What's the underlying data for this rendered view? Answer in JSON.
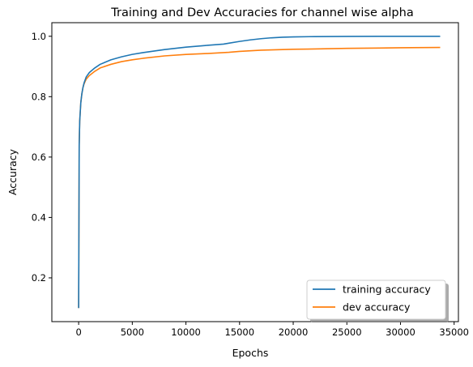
{
  "chart_data": {
    "type": "line",
    "title": "Training and Dev Accuracies for channel wise alpha",
    "xlabel": "Epochs",
    "ylabel": "Accuracy",
    "xlim": [
      -2500,
      35400
    ],
    "ylim": [
      0.055,
      1.045
    ],
    "xticks": [
      0,
      5000,
      10000,
      15000,
      20000,
      25000,
      30000,
      35000
    ],
    "yticks": [
      0.2,
      0.4,
      0.6,
      0.8,
      1.0
    ],
    "ytick_labels": [
      "0.2",
      "0.4",
      "0.6",
      "0.8",
      "1.0"
    ],
    "grid": false,
    "legend_position": "lower-right",
    "series": [
      {
        "name": "training accuracy",
        "color": "#1f77b4",
        "x": [
          0,
          50,
          100,
          200,
          300,
          400,
          500,
          700,
          1000,
          1500,
          2000,
          3000,
          4000,
          5000,
          6000,
          8000,
          10000,
          12000,
          13500,
          14000,
          15000,
          16000,
          17000,
          18000,
          19000,
          20000,
          22000,
          25000,
          28000,
          30000,
          33700
        ],
        "y": [
          0.1,
          0.64,
          0.72,
          0.78,
          0.81,
          0.83,
          0.845,
          0.865,
          0.88,
          0.895,
          0.907,
          0.922,
          0.932,
          0.94,
          0.946,
          0.956,
          0.964,
          0.97,
          0.974,
          0.977,
          0.983,
          0.988,
          0.992,
          0.995,
          0.997,
          0.998,
          0.999,
          0.9995,
          1.0,
          1.0,
          1.0
        ]
      },
      {
        "name": "dev accuracy",
        "color": "#ff7f0e",
        "x": [
          0,
          50,
          100,
          200,
          300,
          400,
          500,
          700,
          1000,
          1500,
          2000,
          3000,
          4000,
          5000,
          6000,
          8000,
          10000,
          12000,
          13500,
          14000,
          15000,
          16000,
          17000,
          18000,
          20000,
          22000,
          25000,
          28000,
          30000,
          33700
        ],
        "y": [
          0.1,
          0.64,
          0.72,
          0.78,
          0.81,
          0.83,
          0.842,
          0.858,
          0.87,
          0.884,
          0.895,
          0.907,
          0.916,
          0.922,
          0.927,
          0.935,
          0.94,
          0.943,
          0.946,
          0.947,
          0.95,
          0.952,
          0.954,
          0.955,
          0.957,
          0.958,
          0.96,
          0.961,
          0.962,
          0.963
        ]
      }
    ]
  }
}
